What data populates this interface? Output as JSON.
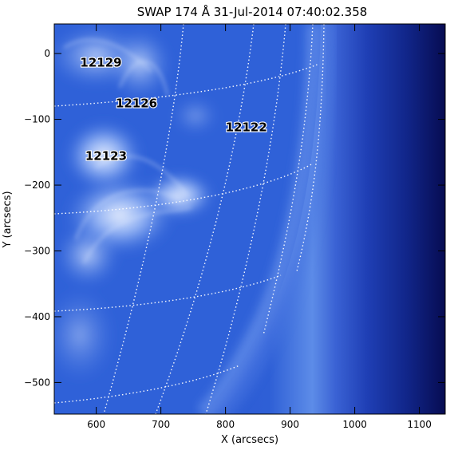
{
  "title": "SWAP 174 Å 31-Jul-2014 07:40:02.358",
  "x_axis": {
    "label": "X (arcsecs)",
    "range": [
      535,
      1140
    ],
    "ticks": [
      600,
      700,
      800,
      900,
      1000,
      1100
    ],
    "tick_labels": [
      "600",
      "700",
      "800",
      "900",
      "1000",
      "1100"
    ]
  },
  "y_axis": {
    "label": "Y (arcsecs)",
    "range": [
      -548,
      45
    ],
    "ticks": [
      0,
      -100,
      -200,
      -300,
      -400,
      -500
    ],
    "tick_labels": [
      "0",
      "−100",
      "−200",
      "−300",
      "−400",
      "−500"
    ]
  },
  "active_regions": [
    {
      "label": "12129",
      "x": 575,
      "y": -20
    },
    {
      "label": "12126",
      "x": 630,
      "y": -82
    },
    {
      "label": "12122",
      "x": 800,
      "y": -118
    },
    {
      "label": "12123",
      "x": 583,
      "y": -162
    }
  ],
  "colors": {
    "limb_glow": "#5d8ce8",
    "disk": "#2e5fd8",
    "bright": "#e8f2ff",
    "corona_edge": "#070c52",
    "grid": "#ffffff"
  }
}
